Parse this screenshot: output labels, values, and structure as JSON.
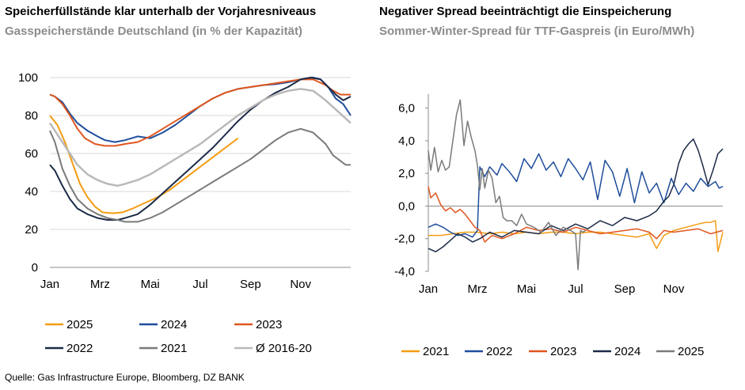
{
  "colors": {
    "orange": "#f39c12",
    "blue": "#1f4e9c",
    "red": "#e0561f",
    "navy": "#1c2b48",
    "gray": "#7a7a7a",
    "lightgray": "#b9b9b9",
    "grid": "#d9d9d9"
  },
  "source": "Quelle: Gas Infrastructure Europe, Bloomberg, DZ BANK",
  "chart_data": [
    {
      "type": "line",
      "title": "Speicherfüllstände klar unterhalb der Vorjahresniveaus",
      "subtitle": "Gasspeicherstände Deutschland (in % der Kapazität)",
      "x_unit": "month (1 = Jan 1)",
      "xlim": [
        1,
        13
      ],
      "ylim": [
        0,
        100
      ],
      "yticks": [
        0,
        20,
        40,
        60,
        80,
        100
      ],
      "ytick_labels": [
        "0",
        "20",
        "40",
        "60",
        "80",
        "100"
      ],
      "xticks": [
        1,
        3,
        5,
        7,
        9,
        11
      ],
      "xtick_labels": [
        "Jan",
        "Mrz",
        "Mai",
        "Jul",
        "Sep",
        "Nov"
      ],
      "grid": true,
      "legend": {
        "placement": "bottom",
        "labels": [
          "2025",
          "2024",
          "2023",
          "2022",
          "2021",
          "Ø 2016-20"
        ]
      },
      "series": [
        {
          "name": "2025",
          "color": "orange",
          "width": 2,
          "x": [
            1,
            1.3,
            1.6,
            1.9,
            2.2,
            2.5,
            2.8,
            3.1,
            3.5,
            3.9,
            4.3,
            4.8,
            5.3,
            5.8,
            6.3,
            6.8,
            7.3,
            7.8,
            8.2,
            8.5
          ],
          "y": [
            80,
            75,
            66,
            55,
            44,
            37,
            32,
            29,
            28.5,
            29,
            31,
            34,
            37,
            41,
            46,
            51,
            56,
            61,
            65,
            68
          ]
        },
        {
          "name": "2024",
          "color": "blue",
          "width": 2,
          "x": [
            1,
            1.2,
            1.5,
            1.8,
            2.1,
            2.5,
            2.9,
            3.2,
            3.6,
            4,
            4.5,
            5,
            5.5,
            6,
            6.5,
            7,
            7.5,
            8,
            8.5,
            9,
            9.5,
            10,
            10.5,
            11,
            11.5,
            11.8,
            12.1,
            12.4,
            12.7,
            13
          ],
          "y": [
            91,
            90,
            87,
            81,
            76,
            72,
            69,
            67,
            66,
            67,
            69,
            68,
            71,
            75,
            80,
            85,
            89,
            92,
            94,
            95,
            96,
            96.5,
            97.5,
            99,
            100,
            99,
            95,
            89,
            86,
            80
          ]
        },
        {
          "name": "2023",
          "color": "red",
          "width": 2,
          "x": [
            1,
            1.2,
            1.5,
            1.8,
            2.1,
            2.4,
            2.8,
            3.2,
            3.6,
            4,
            4.5,
            5,
            5.5,
            6,
            6.5,
            7,
            7.5,
            8,
            8.5,
            9,
            9.5,
            10,
            10.5,
            11,
            11.5,
            12,
            12.3,
            12.6,
            12.8,
            13
          ],
          "y": [
            91,
            90,
            86,
            80,
            73,
            68,
            65,
            64,
            64,
            65,
            66,
            69,
            73,
            77,
            81,
            85,
            89,
            92,
            94,
            95,
            96,
            97,
            98,
            99,
            99,
            96,
            93,
            91,
            91,
            91
          ]
        },
        {
          "name": "2022",
          "color": "navy",
          "width": 2,
          "x": [
            1,
            1.2,
            1.5,
            1.8,
            2.1,
            2.5,
            2.9,
            3.3,
            3.7,
            4,
            4.5,
            5,
            5.5,
            6,
            6.5,
            7,
            7.5,
            8,
            8.5,
            9,
            9.5,
            10,
            10.5,
            11,
            11.4,
            11.8,
            12.1,
            12.4,
            12.7,
            13
          ],
          "y": [
            54,
            51,
            43,
            36,
            31,
            28,
            26,
            25,
            25,
            26,
            28,
            33,
            39,
            45,
            51,
            57,
            63,
            70,
            77,
            83,
            88,
            92,
            95,
            99,
            100,
            99,
            95,
            91,
            88,
            90
          ]
        },
        {
          "name": "2021",
          "color": "gray",
          "width": 2,
          "x": [
            1,
            1.2,
            1.5,
            1.8,
            2.1,
            2.5,
            2.9,
            3.3,
            3.7,
            4,
            4.5,
            5,
            5.5,
            6,
            6.5,
            7,
            7.5,
            8,
            8.5,
            9,
            9.5,
            10,
            10.5,
            11,
            11.5,
            12,
            12.3,
            12.6,
            12.8,
            13
          ],
          "y": [
            72,
            66,
            52,
            43,
            36,
            31,
            28,
            26,
            25,
            24,
            24,
            26,
            29,
            33,
            37,
            41,
            45,
            49,
            53,
            57,
            62,
            67,
            71,
            73,
            71,
            65,
            59,
            56,
            54,
            54
          ]
        },
        {
          "name": "Ø 2016-20",
          "color": "lightgray",
          "width": 2.5,
          "x": [
            1,
            1.2,
            1.5,
            1.8,
            2.1,
            2.5,
            2.9,
            3.3,
            3.7,
            4,
            4.5,
            5,
            5.5,
            6,
            6.5,
            7,
            7.5,
            8,
            8.5,
            9,
            9.5,
            10,
            10.5,
            11,
            11.5,
            12,
            12.5,
            13
          ],
          "y": [
            76,
            72,
            66,
            60,
            54,
            49,
            46,
            44,
            43,
            44,
            46,
            49,
            53,
            57,
            61,
            65,
            70,
            75,
            80,
            84,
            88,
            91,
            93,
            94,
            93,
            88,
            82,
            76
          ]
        }
      ]
    },
    {
      "type": "line",
      "title": "Negativer Spread beeinträchtigt die Einspeicherung",
      "subtitle": "Sommer-Winter-Spread für TTF-Gaspreis (in Euro/MWh)",
      "x_unit": "month (1 = Jan 1)",
      "xlim": [
        1,
        13
      ],
      "ylim": [
        -4,
        7
      ],
      "yticks": [
        -4,
        -2,
        0,
        2,
        4,
        6
      ],
      "ytick_labels": [
        "-4,0",
        "-2,0",
        "0,0",
        "2,0",
        "4,0",
        "6,0"
      ],
      "xticks": [
        1,
        3,
        5,
        7,
        9,
        11
      ],
      "xtick_labels": [
        "Jan",
        "Mrz",
        "Mai",
        "Jul",
        "Sep",
        "Nov"
      ],
      "grid": false,
      "legend": {
        "placement": "bottom",
        "labels": [
          "2021",
          "2022",
          "2023",
          "2024",
          "2025"
        ]
      },
      "series": [
        {
          "name": "2021",
          "color": "orange",
          "width": 1.5,
          "x": [
            1,
            1.5,
            2,
            2.5,
            3,
            3.5,
            4,
            4.5,
            5,
            5.5,
            6,
            6.5,
            7,
            7.5,
            8,
            8.5,
            9,
            9.5,
            10,
            10.3,
            10.6,
            11,
            11.5,
            12,
            12.3,
            12.5,
            12.7,
            12.8,
            13
          ],
          "y": [
            -1.8,
            -1.8,
            -1.7,
            -1.6,
            -1.6,
            -1.7,
            -1.6,
            -1.7,
            -1.6,
            -1.7,
            -1.6,
            -1.6,
            -1.7,
            -1.6,
            -1.6,
            -1.7,
            -1.8,
            -1.9,
            -1.7,
            -2.6,
            -1.8,
            -1.5,
            -1.3,
            -1.1,
            -1.0,
            -1.0,
            -0.9,
            -2.8,
            -1.6
          ]
        },
        {
          "name": "2022",
          "color": "blue",
          "width": 1.5,
          "x": [
            1,
            1.3,
            1.6,
            1.9,
            2.2,
            2.5,
            2.8,
            3,
            3.1,
            3.3,
            3.5,
            3.8,
            4,
            4.3,
            4.6,
            4.9,
            5.2,
            5.5,
            5.8,
            6.1,
            6.4,
            6.7,
            7,
            7.3,
            7.6,
            7.9,
            8.2,
            8.5,
            8.8,
            9.1,
            9.4,
            9.7,
            10,
            10.3,
            10.6,
            10.9,
            11.2,
            11.5,
            11.8,
            12.1,
            12.4,
            12.7,
            12.85,
            13
          ],
          "y": [
            -1.3,
            -1.1,
            -1.3,
            -1.6,
            -1.8,
            -1.7,
            -1.9,
            -1.5,
            2.4,
            1.8,
            2.4,
            1.9,
            2.6,
            2.1,
            1.5,
            2.9,
            2.3,
            3.2,
            2.2,
            2.7,
            1.8,
            2.9,
            2.3,
            1.6,
            2.7,
            0.4,
            2.8,
            2.1,
            0.6,
            2.3,
            0.2,
            2.1,
            0.8,
            1.4,
            0.2,
            1.7,
            0.7,
            1.4,
            0.9,
            1.7,
            1.2,
            1.5,
            1.1,
            1.2
          ]
        },
        {
          "name": "2023",
          "color": "red",
          "width": 1.5,
          "x": [
            1,
            1.1,
            1.3,
            1.5,
            1.7,
            1.9,
            2.1,
            2.3,
            2.5,
            2.7,
            2.9,
            3.1,
            3.3,
            3.6,
            4,
            4.5,
            5,
            5.5,
            6,
            6.5,
            7,
            7.5,
            8,
            8.5,
            9,
            9.5,
            10,
            10.3,
            10.6,
            11,
            11.5,
            12,
            12.5,
            13
          ],
          "y": [
            1.2,
            0.5,
            0.8,
            0.1,
            -0.3,
            -0.1,
            -0.4,
            -0.2,
            -0.5,
            -0.9,
            -1.3,
            -1.5,
            -2.2,
            -1.8,
            -2.0,
            -1.7,
            -1.3,
            -1.5,
            -1.4,
            -1.6,
            -1.3,
            -1.5,
            -1.7,
            -1.6,
            -1.5,
            -1.4,
            -1.6,
            -2.0,
            -1.5,
            -1.6,
            -1.5,
            -1.4,
            -1.7,
            -1.5
          ]
        },
        {
          "name": "2024",
          "color": "navy",
          "width": 1.5,
          "x": [
            1,
            1.3,
            1.6,
            1.9,
            2.2,
            2.5,
            2.8,
            3.1,
            3.5,
            4,
            4.5,
            5,
            5.5,
            6,
            6.5,
            7,
            7.5,
            8,
            8.5,
            9,
            9.5,
            10,
            10.3,
            10.6,
            10.8,
            11,
            11.2,
            11.4,
            11.6,
            11.8,
            12,
            12.2,
            12.4,
            12.6,
            12.8,
            13
          ],
          "y": [
            -2.6,
            -2.8,
            -2.5,
            -2.1,
            -1.7,
            -1.9,
            -2.2,
            -2.0,
            -1.6,
            -1.9,
            -1.5,
            -1.6,
            -1.7,
            -1.2,
            -1.5,
            -1.1,
            -1.4,
            -0.9,
            -1.2,
            -0.7,
            -0.9,
            -0.6,
            -0.3,
            0.3,
            0.6,
            1.3,
            2.6,
            3.4,
            3.8,
            4.1,
            3.4,
            2.4,
            1.3,
            2.2,
            3.2,
            3.5
          ]
        },
        {
          "name": "2025",
          "color": "gray",
          "width": 1.5,
          "x": [
            1,
            1.1,
            1.25,
            1.4,
            1.55,
            1.7,
            1.85,
            2,
            2.15,
            2.3,
            2.45,
            2.6,
            2.75,
            2.9,
            3,
            3.1,
            3.2,
            3.3,
            3.45,
            3.6,
            3.75,
            3.9,
            4.05,
            4.2,
            4.4,
            4.6,
            4.8,
            5,
            5.3,
            5.6,
            5.9,
            6.2,
            6.5,
            6.8,
            7.0,
            7.1,
            7.2,
            7.3,
            7.4
          ],
          "y": [
            3.4,
            2.2,
            3.6,
            2.1,
            2.8,
            2.2,
            2.4,
            4.0,
            5.6,
            6.5,
            3.7,
            5.2,
            4.2,
            3.4,
            2.5,
            1.0,
            2.3,
            1.1,
            2.2,
            1.7,
            0.2,
            0.6,
            -0.7,
            -0.9,
            -0.9,
            -1.2,
            -0.5,
            -1.1,
            -1.3,
            -1.6,
            -1.0,
            -1.8,
            -1.3,
            -1.5,
            -1.7,
            -3.9,
            -1.5,
            -1.6,
            -1.5
          ]
        }
      ]
    }
  ]
}
